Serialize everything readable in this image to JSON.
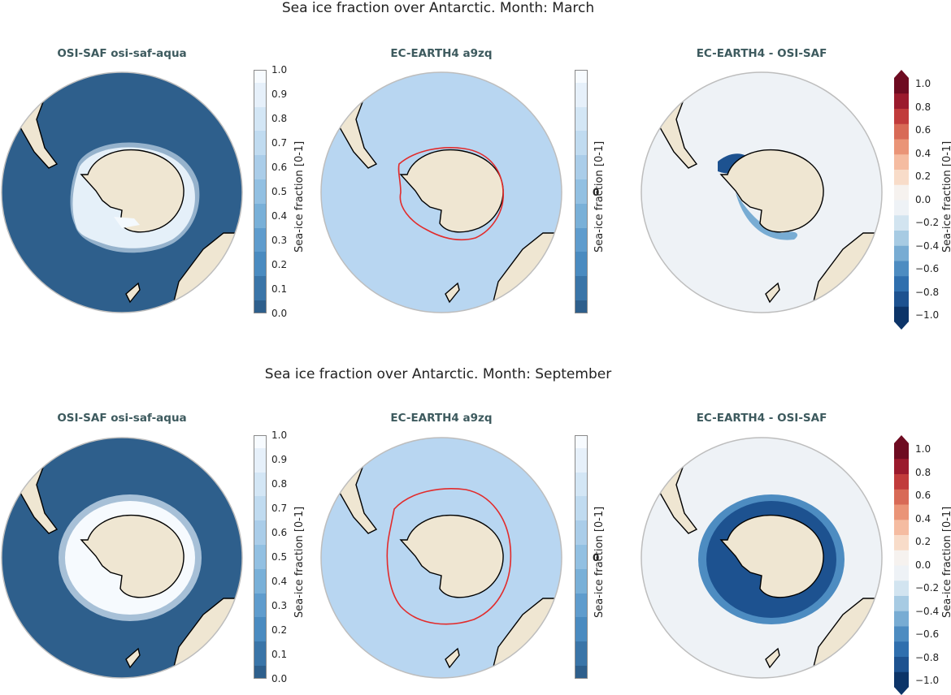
{
  "rows": [
    {
      "title": "Sea ice fraction over Antarctic. Month: March",
      "month": "March"
    },
    {
      "title": "Sea ice fraction over Antarctic. Month: September",
      "month": "September"
    }
  ],
  "panels": {
    "obs_title": "OSI-SAF osi-saf-aqua",
    "model_title": "EC-EARTH4 a9zq",
    "diff_title": "EC-EARTH4 -  OSI-SAF"
  },
  "colorbar_fraction": {
    "label": "Sea-ice fraction [0-1]",
    "ticks": [
      "0.0",
      "0.1",
      "0.2",
      "0.3",
      "0.4",
      "0.5",
      "0.6",
      "0.7",
      "0.8",
      "0.9",
      "1.0"
    ],
    "colors": [
      "#2e5f8c",
      "#3a75a8",
      "#4a8bc0",
      "#5f9ccd",
      "#79b0d8",
      "#92c0e2",
      "#aacde9",
      "#c0dbf0",
      "#d3e6f5",
      "#e6f0fa",
      "#f7fbff"
    ]
  },
  "colorbar_model_mid": "0",
  "colorbar_diff": {
    "label": "Sea-ice fraction [0-1]",
    "ticks": [
      "−1.0",
      "−0.8",
      "−0.6",
      "−0.4",
      "−0.2",
      "0.0",
      "0.2",
      "0.4",
      "0.6",
      "0.8",
      "1.0"
    ],
    "colors": [
      "#0c3468",
      "#1d5290",
      "#2f6fae",
      "#4d8cc1",
      "#78acd3",
      "#a7cbe3",
      "#d2e4f0",
      "#eef2f6",
      "#f6f2ef",
      "#f8dcc9",
      "#f5bca1",
      "#ea9477",
      "#d86a56",
      "#c13b3b",
      "#9b1a2d",
      "#6e0b21"
    ]
  },
  "colors": {
    "land": "#efe6d2",
    "ocean_obs": "#2e5f8c",
    "ocean_model": "#b8d6f1",
    "ocean_diff": "#eef2f6",
    "ice_edge": "#e22b2b",
    "diff_neg": "#1d5290"
  }
}
